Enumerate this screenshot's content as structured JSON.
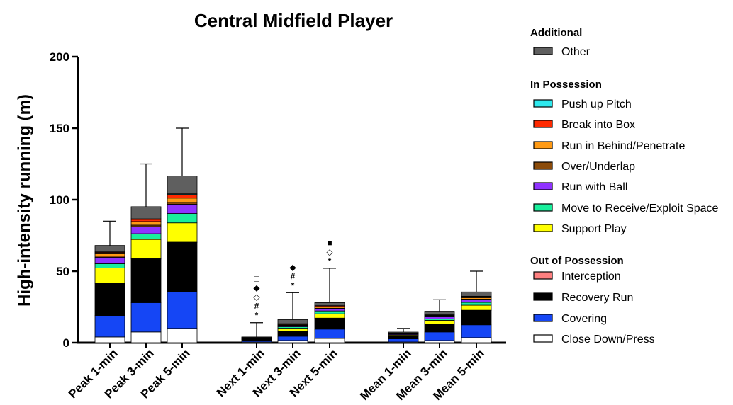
{
  "chart_data": {
    "type": "bar",
    "stacked": true,
    "title": "Central Midfield Player",
    "ylabel": "High-intensity running (m)",
    "xlabel": "",
    "ylim": [
      0,
      200
    ],
    "yticks": [
      "0",
      "50",
      "100",
      "150",
      "200"
    ],
    "grid": false,
    "legend_position": "right",
    "categories": [
      "Peak 1-min",
      "Peak 3-min",
      "Peak 5-min",
      "Next 1-min",
      "Next 3-min",
      "Next 5-min",
      "Mean 1-min",
      "Mean 3-min",
      "Mean 5-min"
    ],
    "legend_groups": [
      {
        "title": "Additional",
        "items": [
          "Other"
        ]
      },
      {
        "title": "In Possession",
        "items": [
          "Push up Pitch",
          "Break into Box",
          "Run in Behind/Penetrate",
          "Over/Underlap",
          "Run with Ball",
          "Move to Receive/Exploit Space",
          "Support Play"
        ]
      },
      {
        "title": "Out of Possession",
        "items": [
          "Interception",
          "Recovery Run",
          "Covering",
          "Close Down/Press"
        ]
      }
    ],
    "series": [
      {
        "name": "Close Down/Press",
        "color": "#ffffff",
        "values": [
          4,
          7.5,
          10,
          0.5,
          1.5,
          3,
          0.5,
          1.5,
          3.5
        ]
      },
      {
        "name": "Covering",
        "color": "#1546f5",
        "values": [
          15,
          20.5,
          25.5,
          0.8,
          3,
          6.5,
          2.2,
          6,
          9
        ]
      },
      {
        "name": "Recovery Run",
        "color": "#000000",
        "values": [
          22.5,
          30.5,
          34.5,
          0.9,
          3.5,
          7.5,
          1.8,
          5.5,
          10
        ]
      },
      {
        "name": "Interception",
        "color": "#ff8080",
        "values": [
          0.2,
          0.2,
          0.3,
          0.1,
          0.1,
          0.2,
          0.1,
          0.1,
          0.2
        ]
      },
      {
        "name": "Support Play",
        "color": "#ffff00",
        "values": [
          10.5,
          13.5,
          13.5,
          0.4,
          2,
          3,
          0.7,
          2.5,
          3.5
        ]
      },
      {
        "name": "Move to Receive/Exploit Space",
        "color": "#19ef9c",
        "values": [
          3,
          4,
          6.5,
          0.2,
          1,
          2,
          0.3,
          1,
          2
        ]
      },
      {
        "name": "Run with Ball",
        "color": "#9033ff",
        "values": [
          4.5,
          5,
          6.5,
          0.3,
          1,
          1.5,
          0.5,
          1.5,
          1.8
        ]
      },
      {
        "name": "Over/Underlap",
        "color": "#8b4b0a",
        "values": [
          1,
          1,
          1.3,
          0.1,
          0.3,
          0.4,
          0.1,
          0.3,
          0.5
        ]
      },
      {
        "name": "Run in Behind/Penetrate",
        "color": "#ff9a14",
        "values": [
          1.5,
          2.5,
          3,
          0.1,
          0.5,
          1,
          0.1,
          0.6,
          1
        ]
      },
      {
        "name": "Break into Box",
        "color": "#ff2a00",
        "values": [
          1,
          1.5,
          2.5,
          0.1,
          0.3,
          0.6,
          0.1,
          0.4,
          0.8
        ]
      },
      {
        "name": "Push up Pitch",
        "color": "#2ee9ee",
        "values": [
          0.3,
          0.4,
          0.5,
          0.05,
          0.1,
          0.2,
          0.05,
          0.1,
          0.2
        ]
      },
      {
        "name": "Other",
        "color": "#5f5f5f",
        "values": [
          4.5,
          8.5,
          12.5,
          0.45,
          2.8,
          2.1,
          0.95,
          2.5,
          3
        ]
      }
    ],
    "error_top": [
      85,
      125,
      150,
      14,
      35,
      52,
      10,
      30,
      50
    ],
    "significance_markers": [
      {
        "category": "Next 1-min",
        "symbols": [
          "□",
          "◆",
          "◇",
          "#",
          "*"
        ]
      },
      {
        "category": "Next 3-min",
        "symbols": [
          "◆",
          "#",
          "*"
        ]
      },
      {
        "category": "Next 5-min",
        "symbols": [
          "■",
          "◇",
          "*"
        ]
      }
    ]
  }
}
